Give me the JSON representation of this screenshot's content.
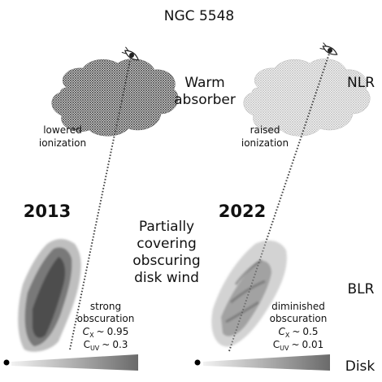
{
  "title": "NGC 5548",
  "labels": {
    "warm_absorber_line1": "Warm",
    "warm_absorber_line2": "absorber",
    "nlr": "NLR",
    "blr": "BLR",
    "disk": "Disk",
    "wind_line1": "Partially",
    "wind_line2": "covering",
    "wind_line3": "obscuring",
    "wind_line4": "disk wind"
  },
  "panels": [
    {
      "year": "2013",
      "ionization_line1": "lowered",
      "ionization_line2": "ionization",
      "obscuration_line1": "strong",
      "obscuration_line2": "obscuration",
      "cx_value": "0.95",
      "cuv_value": "0.3"
    },
    {
      "year": "2022",
      "ionization_line1": "raised",
      "ionization_line2": "ionization",
      "obscuration_line1": "diminished",
      "obscuration_line2": "obscuration",
      "cx_value": "0.5",
      "cuv_value": "0.01"
    }
  ],
  "symbols": {
    "cx_symbol": "C",
    "cx_sub": "X",
    "cuv_symbol": "C",
    "cuv_sub": "UV",
    "approx": "~"
  },
  "icons": {
    "observer": "eye-icon",
    "central_source": "black-hole-dot"
  }
}
